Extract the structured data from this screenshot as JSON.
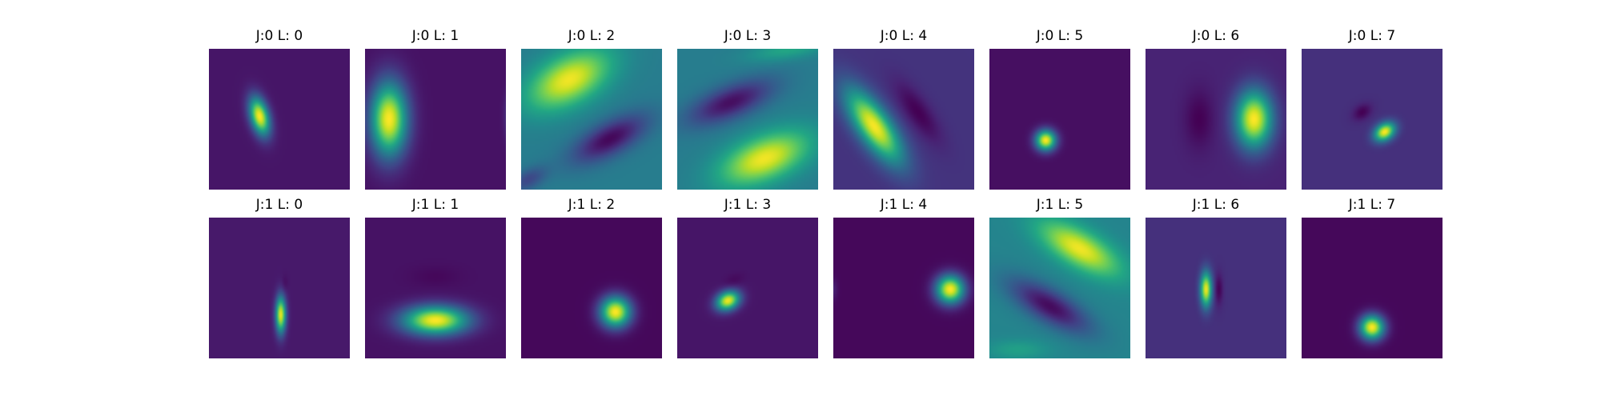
{
  "chart_data": {
    "type": "heatmap",
    "colormap": "viridis",
    "axes_visible": false,
    "grid": false,
    "legend": "none",
    "rows": [
      {
        "panels": [
          {
            "title": "J:0 L: 0",
            "bg": 0.06,
            "blobs": [
              {
                "cx": 0.36,
                "cy": 0.48,
                "sx": 0.045,
                "sy": 0.095,
                "rot": -15,
                "amp": 0.94
              }
            ]
          },
          {
            "title": "J:0 L: 1",
            "bg": 0.05,
            "blobs": [
              {
                "cx": 0.17,
                "cy": 0.5,
                "sx": 0.09,
                "sy": 0.18,
                "rot": 0,
                "amp": 0.95
              },
              {
                "cx": 1.04,
                "cy": 0.48,
                "sx": 0.03,
                "sy": 0.12,
                "rot": 0,
                "amp": 0.22
              }
            ]
          },
          {
            "title": "J:0 L: 2",
            "bg": 0.42,
            "blobs": [
              {
                "cx": 0.34,
                "cy": 0.22,
                "sx": 0.22,
                "sy": 0.12,
                "rot": -28,
                "amp": 0.56
              },
              {
                "cx": 0.63,
                "cy": 0.64,
                "sx": 0.2,
                "sy": 0.08,
                "rot": -28,
                "amp": -0.4
              },
              {
                "cx": 0.05,
                "cy": 0.93,
                "sx": 0.1,
                "sy": 0.05,
                "rot": -28,
                "amp": -0.2
              }
            ]
          },
          {
            "title": "J:0 L: 3",
            "bg": 0.42,
            "blobs": [
              {
                "cx": 0.62,
                "cy": 0.78,
                "sx": 0.23,
                "sy": 0.11,
                "rot": -22,
                "amp": 0.56
              },
              {
                "cx": 0.38,
                "cy": 0.38,
                "sx": 0.22,
                "sy": 0.08,
                "rot": -22,
                "amp": -0.38
              },
              {
                "cx": 0.8,
                "cy": 0.0,
                "sx": 0.2,
                "sy": 0.05,
                "rot": -10,
                "amp": 0.18
              }
            ]
          },
          {
            "title": "J:0 L: 4",
            "bg": 0.15,
            "blobs": [
              {
                "cx": 0.29,
                "cy": 0.55,
                "sx": 0.08,
                "sy": 0.21,
                "rot": -35,
                "amp": 0.84
              },
              {
                "cx": 0.6,
                "cy": 0.45,
                "sx": 0.06,
                "sy": 0.17,
                "rot": -35,
                "amp": -0.15
              }
            ]
          },
          {
            "title": "J:0 L: 5",
            "bg": 0.04,
            "blobs": [
              {
                "cx": 0.4,
                "cy": 0.65,
                "sx": 0.05,
                "sy": 0.05,
                "rot": 0,
                "amp": 0.96
              }
            ]
          },
          {
            "title": "J:0 L: 6",
            "bg": 0.1,
            "blobs": [
              {
                "cx": 0.77,
                "cy": 0.5,
                "sx": 0.09,
                "sy": 0.14,
                "rot": 0,
                "amp": 0.9
              },
              {
                "cx": 0.38,
                "cy": 0.5,
                "sx": 0.07,
                "sy": 0.14,
                "rot": 0,
                "amp": -0.1
              }
            ]
          },
          {
            "title": "J:0 L: 7",
            "bg": 0.14,
            "blobs": [
              {
                "cx": 0.59,
                "cy": 0.59,
                "sx": 0.055,
                "sy": 0.04,
                "rot": -35,
                "amp": 0.86
              },
              {
                "cx": 0.43,
                "cy": 0.45,
                "sx": 0.05,
                "sy": 0.035,
                "rot": -35,
                "amp": -0.14
              }
            ]
          }
        ]
      },
      {
        "panels": [
          {
            "title": "J:1 L: 0",
            "bg": 0.07,
            "blobs": [
              {
                "cx": 0.51,
                "cy": 0.69,
                "sx": 0.025,
                "sy": 0.09,
                "rot": 0,
                "amp": 0.9
              },
              {
                "cx": 0.54,
                "cy": 0.47,
                "sx": 0.015,
                "sy": 0.04,
                "rot": 0,
                "amp": -0.04
              }
            ]
          },
          {
            "title": "J:1 L: 1",
            "bg": 0.05,
            "blobs": [
              {
                "cx": 0.5,
                "cy": 0.73,
                "sx": 0.16,
                "sy": 0.07,
                "rot": 0,
                "amp": 0.95
              },
              {
                "cx": 0.5,
                "cy": 0.42,
                "sx": 0.12,
                "sy": 0.05,
                "rot": 0,
                "amp": -0.03
              }
            ]
          },
          {
            "title": "J:1 L: 2",
            "bg": 0.02,
            "blobs": [
              {
                "cx": 0.67,
                "cy": 0.67,
                "sx": 0.075,
                "sy": 0.075,
                "rot": 0,
                "amp": 0.98
              }
            ]
          },
          {
            "title": "J:1 L: 3",
            "bg": 0.06,
            "blobs": [
              {
                "cx": 0.36,
                "cy": 0.59,
                "sx": 0.06,
                "sy": 0.045,
                "rot": -25,
                "amp": 0.92
              },
              {
                "cx": 0.4,
                "cy": 0.45,
                "sx": 0.05,
                "sy": 0.03,
                "rot": -25,
                "amp": -0.04
              }
            ]
          },
          {
            "title": "J:1 L: 4",
            "bg": 0.02,
            "blobs": [
              {
                "cx": 0.83,
                "cy": 0.51,
                "sx": 0.07,
                "sy": 0.07,
                "rot": 0,
                "amp": 0.98
              },
              {
                "cx": 0.0,
                "cy": 0.51,
                "sx": 0.02,
                "sy": 0.05,
                "rot": 0,
                "amp": 0.08
              }
            ]
          },
          {
            "title": "J:1 L: 5",
            "bg": 0.45,
            "blobs": [
              {
                "cx": 0.64,
                "cy": 0.22,
                "sx": 0.22,
                "sy": 0.09,
                "rot": 30,
                "amp": 0.53
              },
              {
                "cx": 0.43,
                "cy": 0.63,
                "sx": 0.22,
                "sy": 0.08,
                "rot": 30,
                "amp": -0.42
              },
              {
                "cx": 0.2,
                "cy": 0.94,
                "sx": 0.15,
                "sy": 0.05,
                "rot": 0,
                "amp": 0.12
              }
            ]
          },
          {
            "title": "J:1 L: 6",
            "bg": 0.14,
            "blobs": [
              {
                "cx": 0.43,
                "cy": 0.51,
                "sx": 0.028,
                "sy": 0.085,
                "rot": 0,
                "amp": 0.84
              },
              {
                "cx": 0.52,
                "cy": 0.51,
                "sx": 0.02,
                "sy": 0.075,
                "rot": 0,
                "amp": -0.14
              }
            ]
          },
          {
            "title": "J:1 L: 7",
            "bg": 0.02,
            "blobs": [
              {
                "cx": 0.5,
                "cy": 0.78,
                "sx": 0.06,
                "sy": 0.06,
                "rot": 0,
                "amp": 0.98
              }
            ]
          }
        ]
      }
    ]
  }
}
